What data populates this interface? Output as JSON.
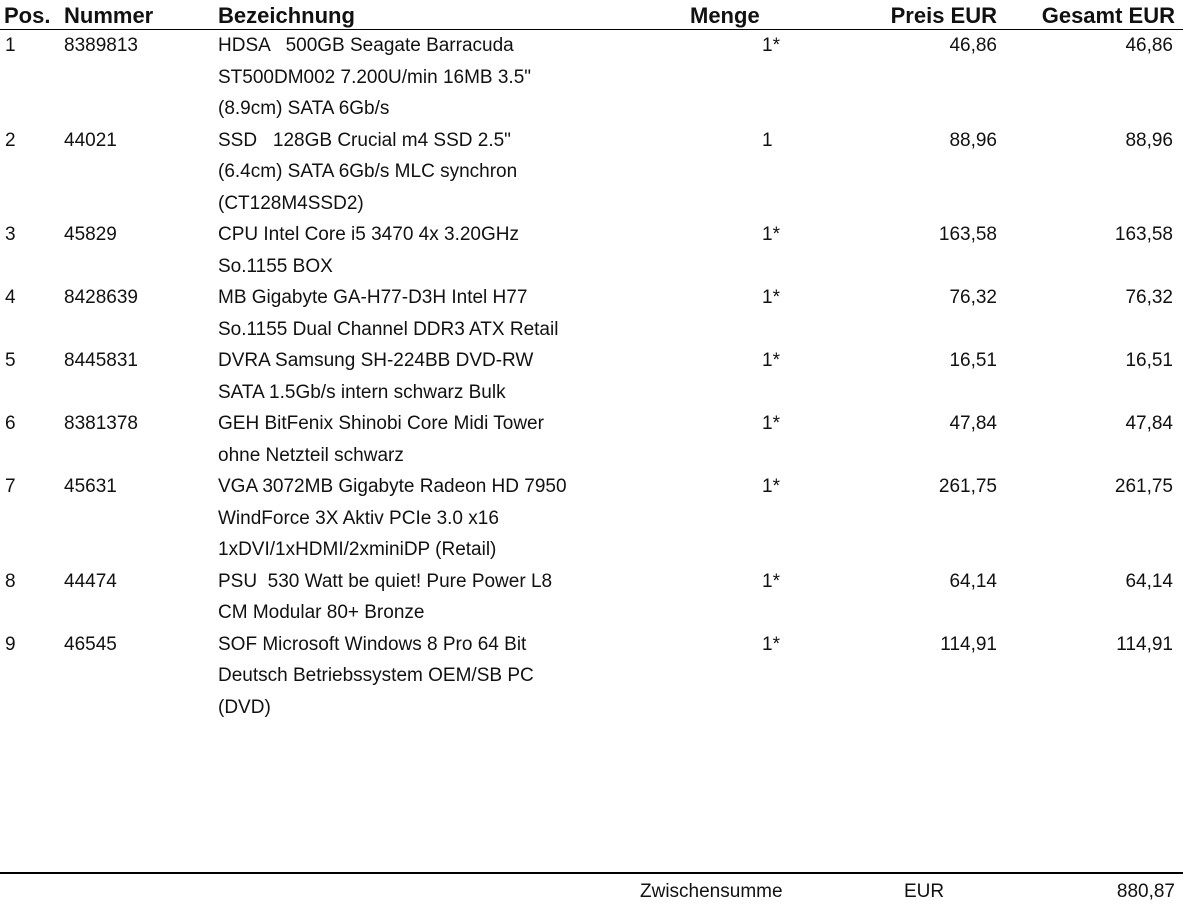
{
  "header": {
    "pos": "Pos.",
    "nummer": "Nummer",
    "bezeichnung": "Bezeichnung",
    "menge": "Menge",
    "preis": "Preis EUR",
    "gesamt": "Gesamt EUR"
  },
  "items": [
    {
      "pos": "1",
      "nummer": "8389813",
      "lines": [
        "HDSA   500GB Seagate Barracuda",
        "ST500DM002 7.200U/min 16MB 3.5\"",
        "(8.9cm) SATA 6Gb/s"
      ],
      "menge": "1*",
      "preis": "46,86",
      "gesamt": "46,86"
    },
    {
      "pos": "2",
      "nummer": "44021",
      "lines": [
        "SSD   128GB Crucial m4 SSD 2.5\"",
        "(6.4cm) SATA 6Gb/s MLC synchron",
        "(CT128M4SSD2)"
      ],
      "menge": "1",
      "preis": "88,96",
      "gesamt": "88,96"
    },
    {
      "pos": "3",
      "nummer": "45829",
      "lines": [
        "CPU Intel Core i5 3470 4x 3.20GHz",
        "So.1155 BOX"
      ],
      "menge": "1*",
      "preis": "163,58",
      "gesamt": "163,58"
    },
    {
      "pos": "4",
      "nummer": "8428639",
      "lines": [
        "MB Gigabyte GA-H77-D3H Intel H77",
        "So.1155 Dual Channel DDR3 ATX Retail"
      ],
      "menge": "1*",
      "preis": "76,32",
      "gesamt": "76,32"
    },
    {
      "pos": "5",
      "nummer": "8445831",
      "lines": [
        "DVRA Samsung SH-224BB DVD-RW",
        "SATA 1.5Gb/s intern schwarz Bulk"
      ],
      "menge": "1*",
      "preis": "16,51",
      "gesamt": "16,51"
    },
    {
      "pos": "6",
      "nummer": "8381378",
      "lines": [
        "GEH BitFenix Shinobi Core Midi Tower",
        "ohne Netzteil schwarz"
      ],
      "menge": "1*",
      "preis": "47,84",
      "gesamt": "47,84"
    },
    {
      "pos": "7",
      "nummer": "45631",
      "lines": [
        "VGA 3072MB Gigabyte Radeon HD 7950",
        "WindForce 3X Aktiv PCIe 3.0 x16",
        "1xDVI/1xHDMI/2xminiDP (Retail)"
      ],
      "menge": "1*",
      "preis": "261,75",
      "gesamt": "261,75"
    },
    {
      "pos": "8",
      "nummer": "44474",
      "lines": [
        "PSU  530 Watt be quiet! Pure Power L8",
        "CM Modular 80+ Bronze"
      ],
      "menge": "1*",
      "preis": "64,14",
      "gesamt": "64,14"
    },
    {
      "pos": "9",
      "nummer": "46545",
      "lines": [
        "SOF Microsoft Windows 8 Pro 64 Bit",
        "Deutsch Betriebssystem OEM/SB PC",
        "(DVD)"
      ],
      "menge": "1*",
      "preis": "114,91",
      "gesamt": "114,91"
    }
  ],
  "footer": {
    "label": "Zwischensumme",
    "currency": "EUR",
    "value": "880,87"
  }
}
